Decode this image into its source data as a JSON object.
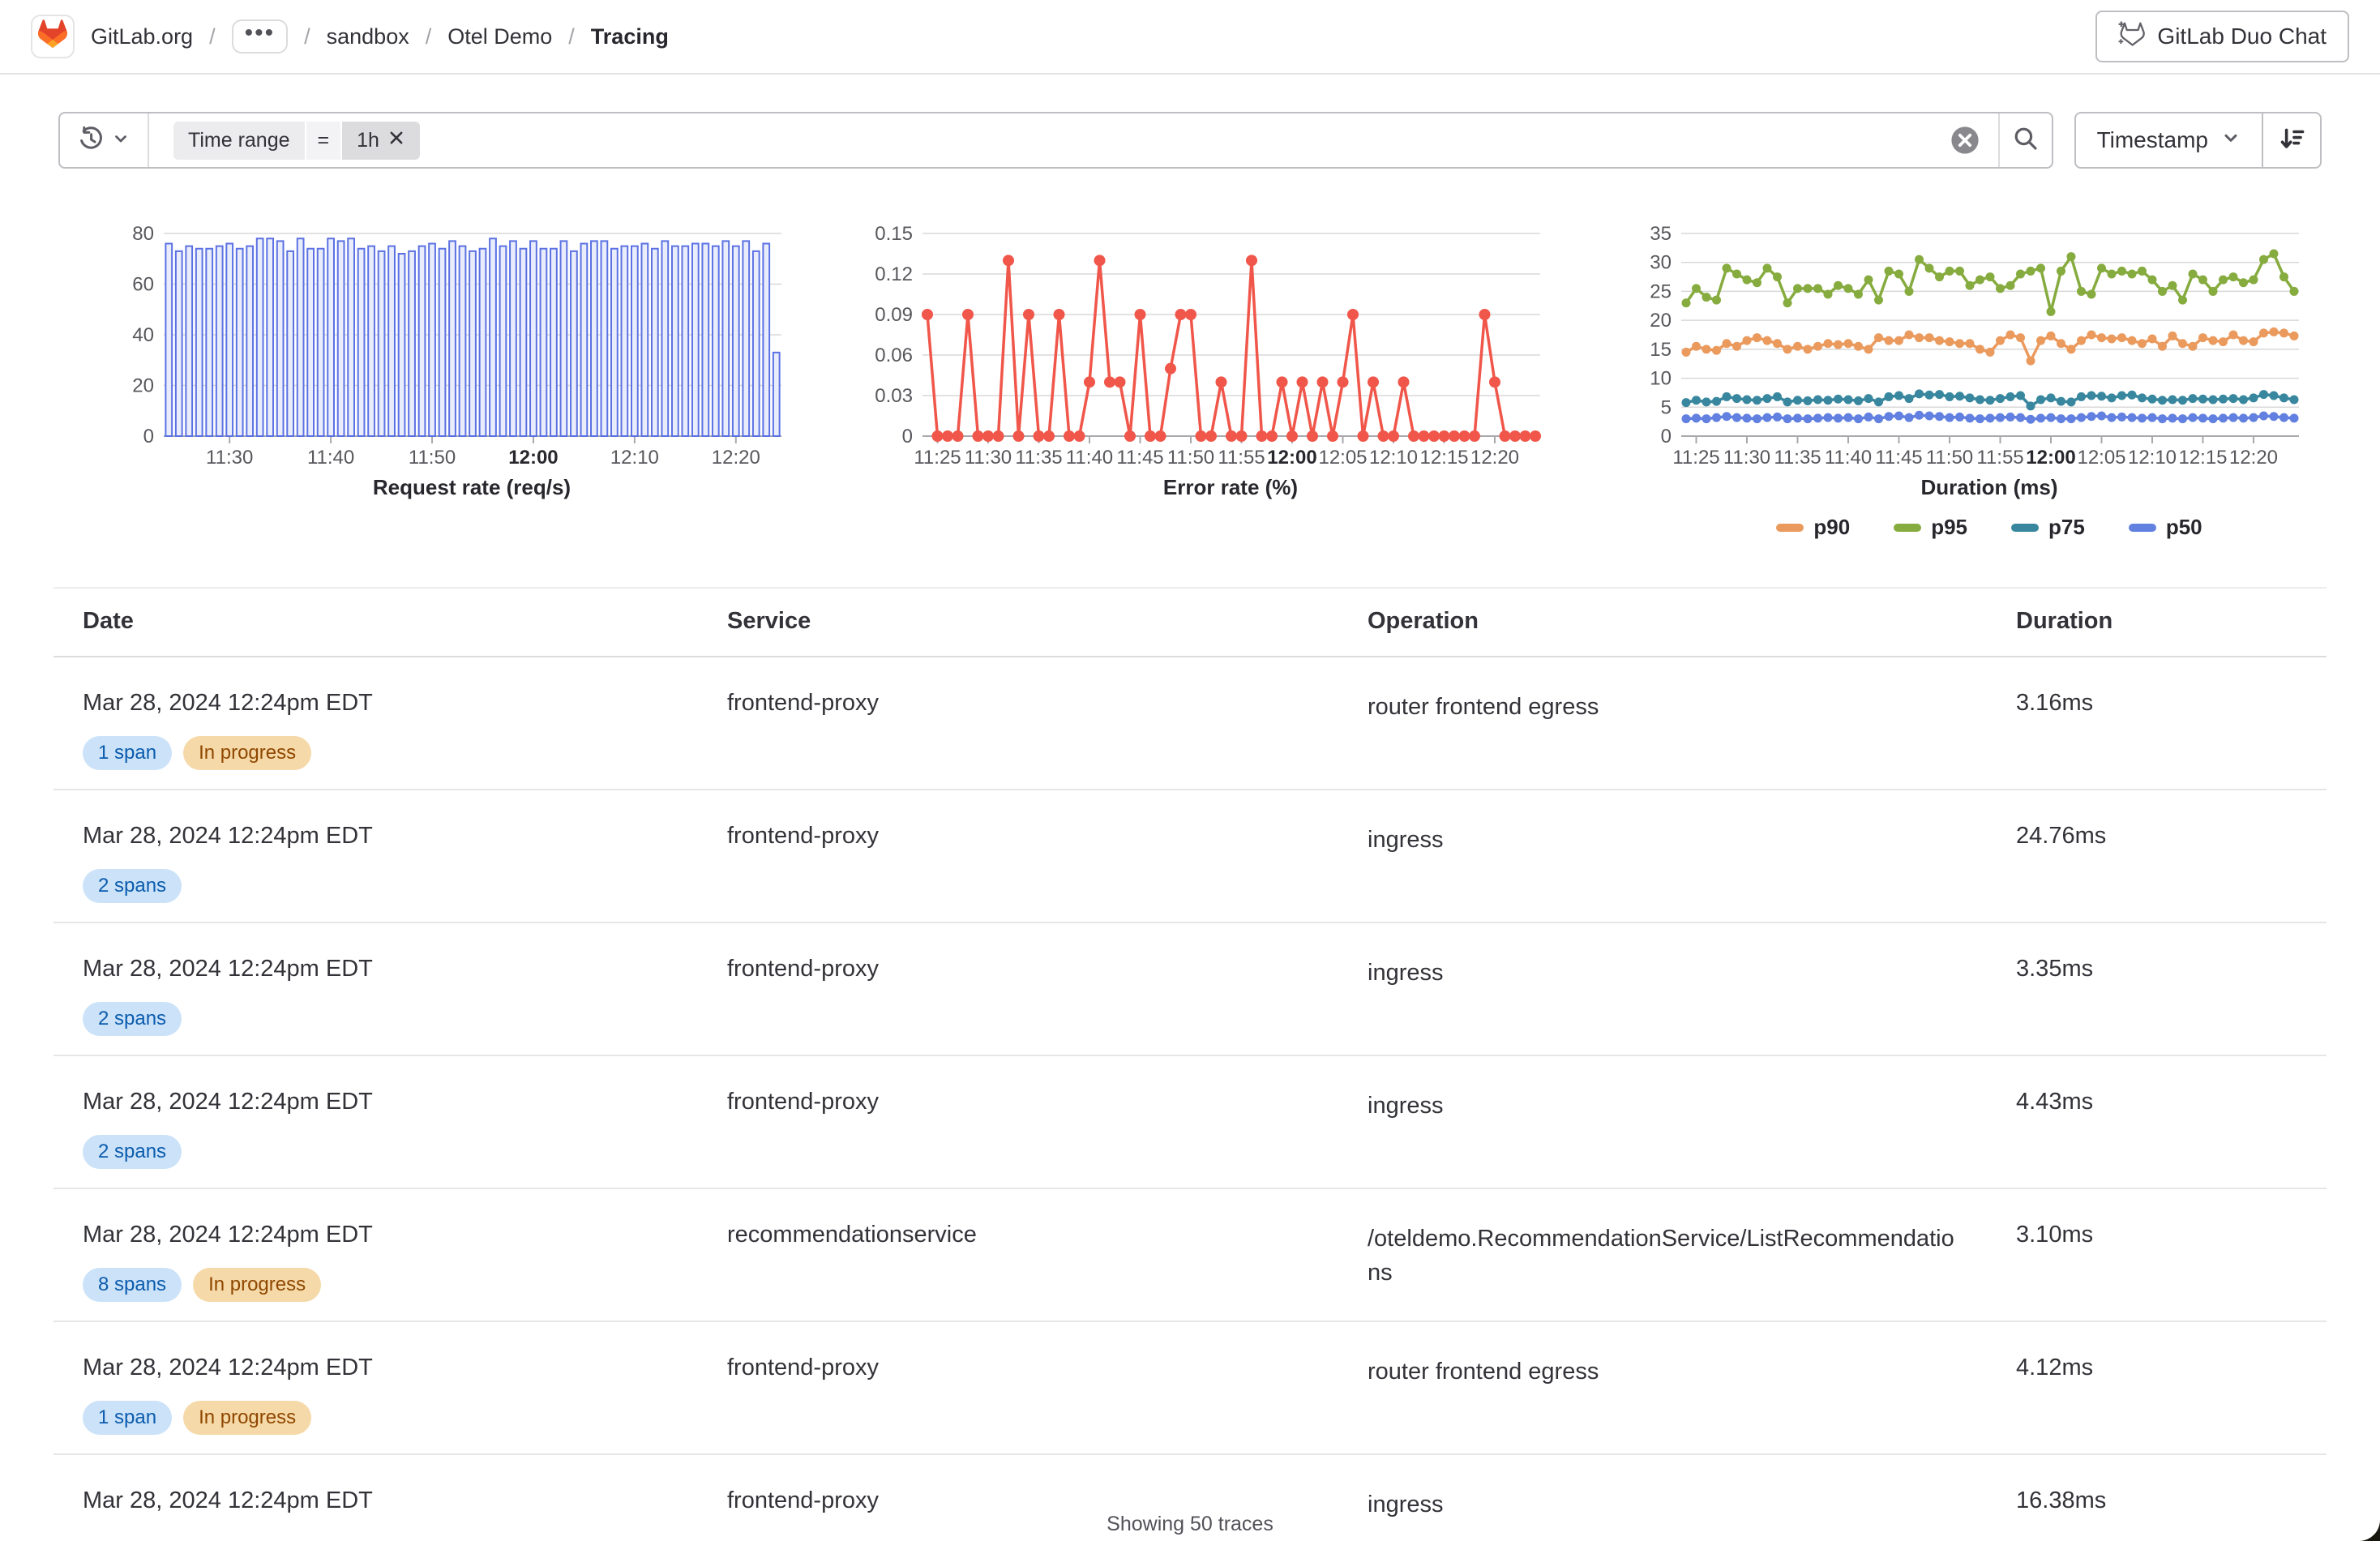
{
  "header": {
    "breadcrumb": {
      "group": "GitLab.org",
      "separator": "/",
      "ellipsis": "•••",
      "subgroup": "sandbox",
      "project": "Otel Demo",
      "current": "Tracing"
    },
    "duo_chat_label": "GitLab Duo Chat"
  },
  "filter_bar": {
    "token": {
      "field": "Time range",
      "operator": "=",
      "value": "1h"
    },
    "sort_field_label": "Timestamp"
  },
  "theme": {
    "bar_stroke": "#5b71e3",
    "bar_fill": "#e9edfb",
    "error_red": "#f0564a",
    "p90_orange": "#eb9a5e",
    "p95_green": "#86ab3e",
    "p75_teal": "#38879e",
    "p50_blue": "#6180e0",
    "badge_info_bg": "#cbe2f9",
    "badge_info_text": "#0b5cad",
    "badge_warning_bg": "#f5d9a8",
    "badge_warning_text": "#8f4700"
  },
  "chart_data": [
    {
      "type": "bar",
      "title": "Request rate (req/s)",
      "ylim": [
        0,
        80
      ],
      "yticks": [
        0,
        20,
        40,
        60,
        80
      ],
      "grid": true,
      "fill": "#e9edfb",
      "stroke": "#5b71e3",
      "bold_xtick": "12:00",
      "xticks": {
        "indices": [
          6,
          16,
          26,
          36,
          46,
          56
        ],
        "labels": [
          "11:30",
          "11:40",
          "11:50",
          "12:00",
          "12:10",
          "12:20"
        ]
      },
      "values": [
        76,
        73,
        75,
        74,
        74,
        75,
        76,
        74,
        75,
        78,
        78,
        77,
        73,
        78,
        74,
        74,
        78,
        77,
        78,
        74,
        75,
        73,
        75,
        72,
        73,
        75,
        76,
        74,
        77,
        75,
        73,
        74,
        78,
        75,
        77,
        74,
        77,
        74,
        74,
        77,
        73,
        76,
        77,
        77,
        74,
        75,
        75,
        76,
        74,
        77,
        75,
        75,
        76,
        76,
        75,
        77,
        75,
        77,
        73,
        76,
        33
      ]
    },
    {
      "type": "line",
      "title": "Error rate (%)",
      "ylim": [
        0,
        0.15
      ],
      "yticks": [
        0,
        0.03,
        0.06,
        0.09,
        0.12,
        0.15
      ],
      "grid": true,
      "color": "#f0564a",
      "marker_r": 7,
      "bold_xtick": "12:00",
      "xticks": {
        "indices": [
          1,
          6,
          11,
          16,
          21,
          26,
          31,
          36,
          41,
          46,
          51,
          56
        ],
        "labels": [
          "11:25",
          "11:30",
          "11:35",
          "11:40",
          "11:45",
          "11:50",
          "11:55",
          "12:00",
          "12:05",
          "12:10",
          "12:15",
          "12:20"
        ]
      },
      "values": [
        0.09,
        0,
        0,
        0,
        0.09,
        0,
        0,
        0,
        0.13,
        0,
        0.09,
        0,
        0,
        0.09,
        0,
        0,
        0.04,
        0.13,
        0.04,
        0.04,
        0,
        0.09,
        0,
        0,
        0.05,
        0.09,
        0.09,
        0,
        0,
        0.04,
        0,
        0,
        0.13,
        0,
        0,
        0.04,
        0,
        0.04,
        0,
        0.04,
        0,
        0.04,
        0.09,
        0,
        0.04,
        0,
        0,
        0.04,
        0,
        0,
        0,
        0,
        0,
        0,
        0,
        0.09,
        0.04,
        0,
        0,
        0,
        0
      ]
    },
    {
      "type": "line",
      "title": "Duration (ms)",
      "ylim": [
        0,
        35
      ],
      "yticks": [
        0,
        5,
        10,
        15,
        20,
        25,
        30,
        35
      ],
      "grid": true,
      "marker_r": 5.5,
      "legend": true,
      "legend_position": "bottom",
      "bold_xtick": "12:00",
      "xticks": {
        "indices": [
          1,
          6,
          11,
          16,
          21,
          26,
          31,
          36,
          41,
          46,
          51,
          56
        ],
        "labels": [
          "11:25",
          "11:30",
          "11:35",
          "11:40",
          "11:45",
          "11:50",
          "11:55",
          "12:00",
          "12:05",
          "12:10",
          "12:15",
          "12:20"
        ]
      },
      "series": [
        {
          "name": "p90",
          "color": "#eb9a5e",
          "values": [
            14.5,
            15.5,
            15,
            14.8,
            16,
            15.5,
            16.5,
            17,
            16.5,
            16,
            15,
            15.5,
            15,
            15.5,
            16,
            15.8,
            16,
            15.5,
            15,
            17,
            16.5,
            16.5,
            17.5,
            17,
            17,
            16.5,
            16.3,
            16,
            16,
            15,
            14.5,
            16.5,
            17.5,
            17,
            13,
            16.5,
            17.3,
            16,
            15,
            16.5,
            17.5,
            17,
            16.8,
            17,
            16.5,
            16,
            16.8,
            15.5,
            17.3,
            16,
            15.5,
            17,
            16.5,
            16.3,
            17.5,
            16.5,
            16.3,
            17.8,
            18,
            17.8,
            17.3
          ]
        },
        {
          "name": "p95",
          "color": "#86ab3e",
          "values": [
            23,
            25.5,
            24,
            23.5,
            29,
            28,
            27,
            26.5,
            29,
            27.5,
            23,
            25.5,
            25.5,
            25.5,
            24.5,
            26,
            25.5,
            24.5,
            27,
            23.5,
            28.5,
            28,
            25,
            30.5,
            29,
            27.5,
            28.5,
            28.5,
            26,
            27,
            27.5,
            25.5,
            26,
            28,
            28.5,
            29,
            21.5,
            28.5,
            31,
            25,
            24.5,
            29,
            28,
            28.5,
            28,
            28.5,
            27,
            25,
            26,
            23.5,
            28,
            27,
            25,
            27,
            27.5,
            26.5,
            27,
            30.5,
            31.5,
            27.5,
            25
          ]
        },
        {
          "name": "p75",
          "color": "#38879e",
          "values": [
            5.8,
            6.2,
            5.9,
            6,
            6.8,
            6.5,
            6.3,
            6.2,
            6.5,
            6.8,
            5.9,
            6.2,
            6.1,
            6.3,
            6.2,
            6.4,
            6.3,
            6.1,
            6.5,
            5.9,
            6.8,
            7,
            6.5,
            7.3,
            7.1,
            7.2,
            6.8,
            6.9,
            6.6,
            6.3,
            6.2,
            6.5,
            6.8,
            7,
            5.2,
            6.3,
            6.6,
            6,
            5.9,
            6.8,
            7,
            6.9,
            6.6,
            7,
            7.1,
            6.6,
            6.4,
            6.2,
            6.3,
            6.2,
            6.5,
            6.4,
            6.3,
            6.4,
            6.5,
            6.3,
            6.6,
            7.2,
            7,
            6.6,
            6.3
          ]
        },
        {
          "name": "p50",
          "color": "#6180e0",
          "values": [
            3,
            3.1,
            3,
            3.2,
            3.4,
            3.2,
            3.1,
            3,
            3.2,
            3.3,
            3,
            3.1,
            3,
            3.1,
            3.2,
            3.1,
            3.2,
            3,
            3.3,
            3,
            3.4,
            3.5,
            3.2,
            3.6,
            3.5,
            3.4,
            3.2,
            3.3,
            3.1,
            3,
            3.1,
            3.2,
            3.3,
            3.2,
            2.9,
            3.1,
            3.2,
            3,
            3,
            3.2,
            3.4,
            3.5,
            3.2,
            3.3,
            3.2,
            3.1,
            3.2,
            3,
            3.1,
            3,
            3.2,
            3.1,
            3,
            3.1,
            3.2,
            3.1,
            3.2,
            3.5,
            3.4,
            3.2,
            3.1
          ]
        }
      ]
    }
  ],
  "table": {
    "columns": [
      "Date",
      "Service",
      "Operation",
      "Duration"
    ],
    "rows": [
      {
        "date": "Mar 28, 2024 12:24pm EDT",
        "badges": [
          {
            "label": "1 span",
            "type": "info"
          },
          {
            "label": "In progress",
            "type": "warning"
          }
        ],
        "service": "frontend-proxy",
        "operation": "router frontend egress",
        "duration": "3.16ms"
      },
      {
        "date": "Mar 28, 2024 12:24pm EDT",
        "badges": [
          {
            "label": "2 spans",
            "type": "info"
          }
        ],
        "service": "frontend-proxy",
        "operation": "ingress",
        "duration": "24.76ms"
      },
      {
        "date": "Mar 28, 2024 12:24pm EDT",
        "badges": [
          {
            "label": "2 spans",
            "type": "info"
          }
        ],
        "service": "frontend-proxy",
        "operation": "ingress",
        "duration": "3.35ms"
      },
      {
        "date": "Mar 28, 2024 12:24pm EDT",
        "badges": [
          {
            "label": "2 spans",
            "type": "info"
          }
        ],
        "service": "frontend-proxy",
        "operation": "ingress",
        "duration": "4.43ms"
      },
      {
        "date": "Mar 28, 2024 12:24pm EDT",
        "badges": [
          {
            "label": "8 spans",
            "type": "info"
          },
          {
            "label": "In progress",
            "type": "warning"
          }
        ],
        "service": "recommendationservice",
        "operation": "/oteldemo.RecommendationService/ListRecommendations",
        "duration": "3.10ms"
      },
      {
        "date": "Mar 28, 2024 12:24pm EDT",
        "badges": [
          {
            "label": "1 span",
            "type": "info"
          },
          {
            "label": "In progress",
            "type": "warning"
          }
        ],
        "service": "frontend-proxy",
        "operation": "router frontend egress",
        "duration": "4.12ms"
      },
      {
        "date": "Mar 28, 2024 12:24pm EDT",
        "badges": [],
        "service": "frontend-proxy",
        "operation": "ingress",
        "duration": "16.38ms"
      }
    ]
  },
  "footer": {
    "summary": "Showing 50 traces"
  }
}
